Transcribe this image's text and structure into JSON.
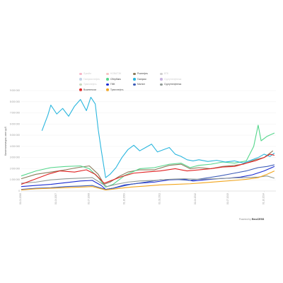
{
  "credit": {
    "prefix": "Powered by",
    "brand": "EmoCESS"
  },
  "chart_data": {
    "type": "line",
    "ylabel": "Капитализация, млн руб.",
    "ylim": [
      0,
      9000000
    ],
    "yticks": [
      {
        "value": 0,
        "label": "0"
      },
      {
        "value": 1000000,
        "label": "1 000 000"
      },
      {
        "value": 2000000,
        "label": "2 000 000"
      },
      {
        "value": 3000000,
        "label": "3 000 000"
      },
      {
        "value": 4000000,
        "label": "4 000 000"
      },
      {
        "value": 5000000,
        "label": "5 000 000"
      },
      {
        "value": 6000000,
        "label": "6 000 000"
      },
      {
        "value": 7000000,
        "label": "7 000 000"
      },
      {
        "value": 8000000,
        "label": "8 000 000"
      },
      {
        "value": 9000000,
        "label": "9 000 000"
      }
    ],
    "xlim": [
      2006.0,
      2014.6
    ],
    "xticks": [
      {
        "value": 2006.0,
        "label": "01.01.2006"
      },
      {
        "value": 2007.2,
        "label": "01.04.2007"
      },
      {
        "value": 2008.3,
        "label": "01.07.2008"
      },
      {
        "value": 2009.5,
        "label": "01.10.2009"
      },
      {
        "value": 2010.7,
        "label": "01.01.2011"
      },
      {
        "value": 2011.9,
        "label": "01.04.2012"
      },
      {
        "value": 2013.0,
        "label": "01.07.2013"
      },
      {
        "value": 2014.2,
        "label": "01.10.2014"
      }
    ],
    "series": [
      {
        "name": "Лукойл",
        "color": "#f7b6c8",
        "visible": false,
        "points": []
      },
      {
        "name": "НОВАТЭК",
        "color": "#f7c4c4",
        "visible": false,
        "points": []
      },
      {
        "name": "Роснефть",
        "color": "#8a7a5a",
        "visible": true,
        "points": [
          [
            2006.0,
            1100000
          ],
          [
            2006.5,
            1500000
          ],
          [
            2007.0,
            1700000
          ],
          [
            2007.5,
            1900000
          ],
          [
            2007.9,
            2100000
          ],
          [
            2008.3,
            2250000
          ],
          [
            2008.6,
            1500000
          ],
          [
            2008.8,
            600000
          ],
          [
            2009.0,
            800000
          ],
          [
            2009.3,
            1300000
          ],
          [
            2009.6,
            1700000
          ],
          [
            2010.0,
            1900000
          ],
          [
            2010.5,
            1900000
          ],
          [
            2011.0,
            2300000
          ],
          [
            2011.4,
            2400000
          ],
          [
            2011.7,
            2000000
          ],
          [
            2012.0,
            2100000
          ],
          [
            2012.4,
            2000000
          ],
          [
            2012.8,
            2200000
          ],
          [
            2013.2,
            2300000
          ],
          [
            2013.5,
            2400000
          ],
          [
            2013.9,
            2800000
          ],
          [
            2014.2,
            3000000
          ],
          [
            2014.5,
            3600000
          ]
        ]
      },
      {
        "name": "ВТБ",
        "color": "#d0d0d0",
        "visible": false,
        "points": []
      },
      {
        "name": "Газпром нефть",
        "color": "#c4d4e8",
        "visible": false,
        "points": []
      },
      {
        "name": "Сбербанк",
        "color": "#55d68c",
        "visible": true,
        "points": [
          [
            2006.0,
            1350000
          ],
          [
            2006.5,
            1800000
          ],
          [
            2007.0,
            2100000
          ],
          [
            2007.5,
            2200000
          ],
          [
            2008.0,
            2250000
          ],
          [
            2008.3,
            2000000
          ],
          [
            2008.6,
            1200000
          ],
          [
            2008.85,
            350000
          ],
          [
            2009.1,
            600000
          ],
          [
            2009.5,
            1400000
          ],
          [
            2010.0,
            2000000
          ],
          [
            2010.5,
            2100000
          ],
          [
            2011.0,
            2400000
          ],
          [
            2011.4,
            2500000
          ],
          [
            2011.7,
            2100000
          ],
          [
            2012.0,
            2300000
          ],
          [
            2012.4,
            2400000
          ],
          [
            2012.8,
            2600000
          ],
          [
            2013.2,
            2500000
          ],
          [
            2013.6,
            2700000
          ],
          [
            2013.85,
            4000000
          ],
          [
            2014.0,
            5900000
          ],
          [
            2014.1,
            4500000
          ],
          [
            2014.3,
            4900000
          ],
          [
            2014.55,
            5200000
          ]
        ]
      },
      {
        "name": "Газпром",
        "color": "#2ab6de",
        "visible": true,
        "points": [
          [
            2006.7,
            5400000
          ],
          [
            2006.9,
            6800000
          ],
          [
            2007.0,
            7700000
          ],
          [
            2007.2,
            6900000
          ],
          [
            2007.4,
            7400000
          ],
          [
            2007.6,
            6700000
          ],
          [
            2007.8,
            7600000
          ],
          [
            2008.0,
            8200000
          ],
          [
            2008.2,
            7200000
          ],
          [
            2008.35,
            8400000
          ],
          [
            2008.5,
            7800000
          ],
          [
            2008.6,
            5500000
          ],
          [
            2008.7,
            3700000
          ],
          [
            2008.85,
            1200000
          ],
          [
            2009.0,
            1500000
          ],
          [
            2009.2,
            2100000
          ],
          [
            2009.4,
            3000000
          ],
          [
            2009.6,
            3700000
          ],
          [
            2009.8,
            4100000
          ],
          [
            2010.0,
            3600000
          ],
          [
            2010.2,
            3900000
          ],
          [
            2010.4,
            4200000
          ],
          [
            2010.6,
            3500000
          ],
          [
            2010.8,
            3700000
          ],
          [
            2011.0,
            3900000
          ],
          [
            2011.2,
            3300000
          ],
          [
            2011.4,
            3100000
          ],
          [
            2011.6,
            2800000
          ],
          [
            2011.8,
            2700000
          ],
          [
            2012.0,
            2800000
          ],
          [
            2012.3,
            2650000
          ],
          [
            2012.6,
            2750000
          ],
          [
            2012.9,
            2600000
          ],
          [
            2013.2,
            2700000
          ],
          [
            2013.5,
            2500000
          ],
          [
            2013.8,
            2800000
          ],
          [
            2014.0,
            3000000
          ],
          [
            2014.2,
            3300000
          ],
          [
            2014.4,
            3100000
          ],
          [
            2014.55,
            3400000
          ]
        ]
      },
      {
        "name": "Сургутнефтегаз",
        "color": "#c8b4e0",
        "visible": false,
        "points": []
      },
      {
        "name": "Транснефть",
        "color": "#c8d8c0",
        "visible": false,
        "points": []
      },
      {
        "name": "ГМК",
        "color": "#1a2bd1",
        "visible": true,
        "points": [
          [
            2006.0,
            400000
          ],
          [
            2006.5,
            500000
          ],
          [
            2007.0,
            600000
          ],
          [
            2007.5,
            750000
          ],
          [
            2008.0,
            900000
          ],
          [
            2008.4,
            950000
          ],
          [
            2008.7,
            500000
          ],
          [
            2008.85,
            150000
          ],
          [
            2009.1,
            250000
          ],
          [
            2009.5,
            550000
          ],
          [
            2010.0,
            700000
          ],
          [
            2010.5,
            800000
          ],
          [
            2011.0,
            1000000
          ],
          [
            2011.5,
            1050000
          ],
          [
            2011.8,
            900000
          ],
          [
            2012.2,
            1000000
          ],
          [
            2012.6,
            1100000
          ],
          [
            2013.0,
            1150000
          ],
          [
            2013.4,
            1250000
          ],
          [
            2013.8,
            1450000
          ],
          [
            2014.2,
            1800000
          ],
          [
            2014.55,
            2200000
          ]
        ]
      },
      {
        "name": "Магнит",
        "color": "#3d5cb8",
        "visible": true,
        "points": [
          [
            2006.0,
            150000
          ],
          [
            2006.5,
            250000
          ],
          [
            2007.0,
            300000
          ],
          [
            2007.5,
            400000
          ],
          [
            2008.0,
            450000
          ],
          [
            2008.4,
            500000
          ],
          [
            2008.85,
            150000
          ],
          [
            2009.2,
            300000
          ],
          [
            2009.7,
            600000
          ],
          [
            2010.2,
            800000
          ],
          [
            2010.7,
            1000000
          ],
          [
            2011.2,
            1050000
          ],
          [
            2011.7,
            950000
          ],
          [
            2012.2,
            1150000
          ],
          [
            2012.7,
            1350000
          ],
          [
            2013.2,
            1600000
          ],
          [
            2013.6,
            1800000
          ],
          [
            2014.0,
            2100000
          ],
          [
            2014.3,
            2200000
          ],
          [
            2014.55,
            2350000
          ]
        ]
      },
      {
        "name": "Сургутнефтегаз",
        "color": "#8f9a96",
        "visible": true,
        "points": [
          [
            2006.0,
            700000
          ],
          [
            2006.5,
            800000
          ],
          [
            2007.0,
            1000000
          ],
          [
            2007.5,
            1100000
          ],
          [
            2008.0,
            1150000
          ],
          [
            2008.4,
            1200000
          ],
          [
            2008.7,
            700000
          ],
          [
            2008.9,
            400000
          ],
          [
            2009.2,
            600000
          ],
          [
            2009.6,
            800000
          ],
          [
            2010.0,
            900000
          ],
          [
            2010.5,
            950000
          ],
          [
            2011.0,
            1050000
          ],
          [
            2011.5,
            1100000
          ],
          [
            2012.0,
            1050000
          ],
          [
            2012.5,
            1100000
          ],
          [
            2013.0,
            1150000
          ],
          [
            2013.5,
            1200000
          ],
          [
            2014.0,
            1250000
          ],
          [
            2014.3,
            1350000
          ],
          [
            2014.55,
            1150000
          ]
        ]
      },
      {
        "name": "Вымпелком",
        "color": "#e02020",
        "visible": true,
        "points": [
          [
            2006.0,
            600000
          ],
          [
            2006.4,
            1000000
          ],
          [
            2006.9,
            1500000
          ],
          [
            2007.3,
            1800000
          ],
          [
            2007.8,
            1700000
          ],
          [
            2008.2,
            1900000
          ],
          [
            2008.5,
            1500000
          ],
          [
            2008.8,
            700000
          ],
          [
            2009.0,
            900000
          ],
          [
            2009.4,
            1300000
          ],
          [
            2009.8,
            1600000
          ],
          [
            2010.2,
            1700000
          ],
          [
            2010.7,
            1800000
          ],
          [
            2011.2,
            2000000
          ],
          [
            2011.6,
            1800000
          ],
          [
            2012.0,
            1900000
          ],
          [
            2012.4,
            2000000
          ],
          [
            2012.8,
            2150000
          ],
          [
            2013.2,
            2200000
          ],
          [
            2013.6,
            2500000
          ],
          [
            2013.9,
            2700000
          ],
          [
            2014.2,
            3000000
          ],
          [
            2014.4,
            3300000
          ],
          [
            2014.55,
            3200000
          ]
        ]
      },
      {
        "name": "Транснефть",
        "color": "#f2a51c",
        "visible": true,
        "points": [
          [
            2006.0,
            100000
          ],
          [
            2006.5,
            200000
          ],
          [
            2007.0,
            250000
          ],
          [
            2007.5,
            300000
          ],
          [
            2008.0,
            350000
          ],
          [
            2008.4,
            400000
          ],
          [
            2008.85,
            100000
          ],
          [
            2009.2,
            200000
          ],
          [
            2009.7,
            350000
          ],
          [
            2010.2,
            450000
          ],
          [
            2010.7,
            550000
          ],
          [
            2011.2,
            600000
          ],
          [
            2011.7,
            650000
          ],
          [
            2012.2,
            750000
          ],
          [
            2012.7,
            850000
          ],
          [
            2013.2,
            950000
          ],
          [
            2013.6,
            1050000
          ],
          [
            2014.0,
            1200000
          ],
          [
            2014.3,
            1500000
          ],
          [
            2014.55,
            1800000
          ]
        ]
      }
    ]
  }
}
